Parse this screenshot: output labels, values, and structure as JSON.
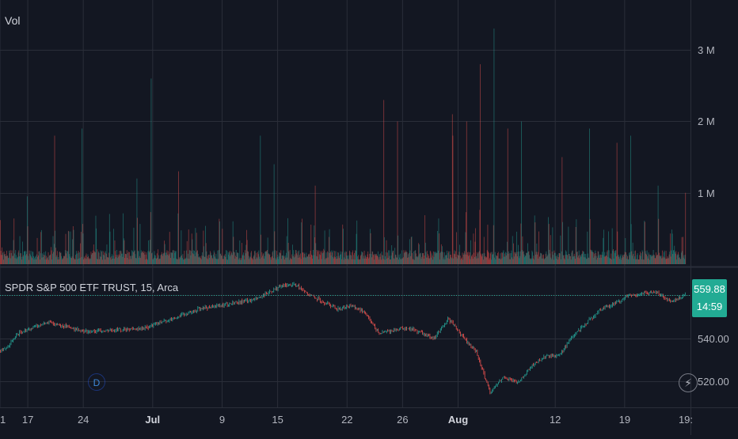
{
  "volume_pane": {
    "title": "Vol"
  },
  "price_pane": {
    "title": "SPDR S&P 500 ETF TRUST, 15, Arca"
  },
  "price_badge": {
    "price": "559.88",
    "countdown": "14:59"
  },
  "badges": {
    "dividend": "D",
    "earnings_icon": "lightning-icon"
  },
  "colors": {
    "background": "#131722",
    "grid": "#2a2e39",
    "up": "#26a69a",
    "down": "#ef5350",
    "badge": "#22ab94",
    "axis_text": "#b2b5be"
  },
  "chart_data": [
    {
      "type": "bar",
      "title": "Vol",
      "y_axis_ticks": [
        "1 M",
        "2 M",
        "3 M"
      ],
      "ylim": [
        0,
        3700000
      ],
      "values_note_visible": false,
      "spikes": [
        {
          "date": "Jun 14",
          "value": 950000
        },
        {
          "date": "Jun 18",
          "value": 1800000
        },
        {
          "date": "Jun 21",
          "value": 1900000
        },
        {
          "date": "Jun 27",
          "value": 1200000
        },
        {
          "date": "Jul 1",
          "value": 2600000
        },
        {
          "date": "Jul 3",
          "value": 1300000
        },
        {
          "date": "Jul 11",
          "value": 1800000
        },
        {
          "date": "Jul 12",
          "value": 1400000
        },
        {
          "date": "Jul 17",
          "value": 1100000
        },
        {
          "date": "Jul 24",
          "value": 2300000
        },
        {
          "date": "Jul 25",
          "value": 2000000
        },
        {
          "date": "Jul 31",
          "value": 2100000
        },
        {
          "date": "Aug 1",
          "value": 1800000
        },
        {
          "date": "Aug 2",
          "value": 2000000
        },
        {
          "date": "Aug 5",
          "value": 2800000
        },
        {
          "date": "Aug 6",
          "value": 3300000
        },
        {
          "date": "Aug 7",
          "value": 1900000
        },
        {
          "date": "Aug 8",
          "value": 2000000
        },
        {
          "date": "Aug 12",
          "value": 1500000
        },
        {
          "date": "Aug 14",
          "value": 1900000
        },
        {
          "date": "Aug 16",
          "value": 1700000
        },
        {
          "date": "Aug 19",
          "value": 1800000
        },
        {
          "date": "Aug 21",
          "value": 1100000
        },
        {
          "date": "Aug 23",
          "value": 1000000
        }
      ]
    },
    {
      "type": "line",
      "title": "SPDR S&P 500 ETF TRUST, 15, Arca",
      "y_axis_ticks": [
        "520.00",
        "540.00"
      ],
      "ylim": [
        508,
        572
      ],
      "x_axis_ticks": [
        "1",
        "17",
        "24",
        "Jul",
        "9",
        "15",
        "22",
        "26",
        "Aug",
        "12",
        "19",
        "19:"
      ],
      "last_price": 559.88,
      "approx_path": [
        {
          "date": "Jun 13",
          "price": 534.5
        },
        {
          "date": "Jun 14",
          "price": 542.0
        },
        {
          "date": "Jun 18",
          "price": 547.5
        },
        {
          "date": "Jun 21",
          "price": 544.5
        },
        {
          "date": "Jun 24",
          "price": 543.0
        },
        {
          "date": "Jun 28",
          "price": 544.5
        },
        {
          "date": "Jul 1",
          "price": 546.5
        },
        {
          "date": "Jul 5",
          "price": 553.5
        },
        {
          "date": "Jul 9",
          "price": 555.5
        },
        {
          "date": "Jul 11",
          "price": 558.0
        },
        {
          "date": "Jul 15",
          "price": 564.0
        },
        {
          "date": "Jul 16",
          "price": 565.0
        },
        {
          "date": "Jul 17",
          "price": 560.0
        },
        {
          "date": "Jul 19",
          "price": 553.5
        },
        {
          "date": "Jul 22",
          "price": 555.0
        },
        {
          "date": "Jul 23",
          "price": 552.0
        },
        {
          "date": "Jul 24",
          "price": 542.0
        },
        {
          "date": "Jul 26",
          "price": 545.0
        },
        {
          "date": "Jul 30",
          "price": 540.0
        },
        {
          "date": "Jul 31",
          "price": 549.0
        },
        {
          "date": "Aug 1",
          "price": 541.0
        },
        {
          "date": "Aug 2",
          "price": 533.5
        },
        {
          "date": "Aug 5",
          "price": 515.0
        },
        {
          "date": "Aug 6",
          "price": 522.0
        },
        {
          "date": "Aug 7",
          "price": 519.0
        },
        {
          "date": "Aug 8",
          "price": 527.5
        },
        {
          "date": "Aug 9",
          "price": 531.5
        },
        {
          "date": "Aug 12",
          "price": 532.0
        },
        {
          "date": "Aug 13",
          "price": 541.5
        },
        {
          "date": "Aug 15",
          "price": 553.5
        },
        {
          "date": "Aug 16",
          "price": 556.0
        },
        {
          "date": "Aug 19",
          "price": 559.5
        },
        {
          "date": "Aug 21",
          "price": 561.5
        },
        {
          "date": "Aug 22",
          "price": 557.0
        },
        {
          "date": "Aug 23",
          "price": 559.88
        }
      ]
    }
  ]
}
